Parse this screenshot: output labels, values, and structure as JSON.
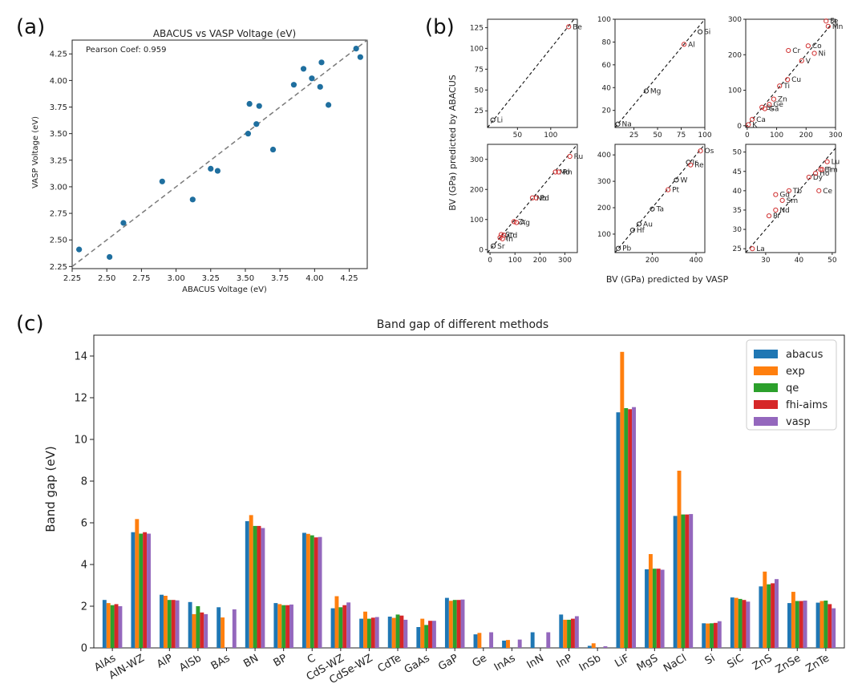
{
  "panel_labels": [
    "(a)",
    "(b)",
    "(c)"
  ],
  "colors": {
    "scatter": "#1f6f9f",
    "parity": "#7a7a7a",
    "bv_marker": "#d03030",
    "abacus": "#1f77b4",
    "exp": "#ff7f0e",
    "qe": "#2ca02c",
    "fhi_aims": "#d62728",
    "vasp": "#9467bd"
  },
  "chart_data": [
    {
      "id": "a",
      "type": "scatter",
      "title": "ABACUS vs VASP Voltage (eV)",
      "xlabel": "ABACUS Voltage (eV)",
      "ylabel": "VASP Voltage (eV)",
      "xlim": [
        2.25,
        4.38
      ],
      "ylim": [
        2.23,
        4.38
      ],
      "xticks": [
        "2.25",
        "2.50",
        "2.75",
        "3.00",
        "3.25",
        "3.50",
        "3.75",
        "4.00",
        "4.25"
      ],
      "yticks": [
        "2.25",
        "2.50",
        "2.75",
        "3.00",
        "3.25",
        "3.50",
        "3.75",
        "4.00",
        "4.25"
      ],
      "annotation": "Pearson Coef: 0.959",
      "parity_line": true,
      "points": [
        [
          2.3,
          2.41
        ],
        [
          2.52,
          2.34
        ],
        [
          2.62,
          2.66
        ],
        [
          2.9,
          3.05
        ],
        [
          3.12,
          2.88
        ],
        [
          3.25,
          3.17
        ],
        [
          3.3,
          3.15
        ],
        [
          3.52,
          3.5
        ],
        [
          3.53,
          3.78
        ],
        [
          3.58,
          3.59
        ],
        [
          3.6,
          3.76
        ],
        [
          3.7,
          3.35
        ],
        [
          3.85,
          3.96
        ],
        [
          3.92,
          4.11
        ],
        [
          3.98,
          4.02
        ],
        [
          4.04,
          3.94
        ],
        [
          4.05,
          4.17
        ],
        [
          4.1,
          3.77
        ],
        [
          4.3,
          4.3
        ],
        [
          4.33,
          4.22
        ]
      ]
    },
    {
      "id": "b",
      "type": "scatter",
      "title": "",
      "xlabel": "BV (GPa) predicted by VASP",
      "ylabel": "BV (GPa) predicted by ABACUS",
      "parity_line": true,
      "subplots": [
        {
          "xlim": [
            5,
            140
          ],
          "ylim": [
            5,
            135
          ],
          "xticks": [
            50,
            100
          ],
          "yticks": [
            25,
            50,
            75,
            100,
            125
          ],
          "points": [
            {
              "label": "Li",
              "x": 13,
              "y": 14,
              "color": "black"
            },
            {
              "label": "Be",
              "x": 127,
              "y": 126,
              "color": "red"
            }
          ]
        },
        {
          "xlim": [
            5,
            100
          ],
          "ylim": [
            5,
            100
          ],
          "xticks": [
            25,
            50,
            75,
            100
          ],
          "yticks": [
            20,
            40,
            60,
            80,
            100
          ],
          "points": [
            {
              "label": "Na",
              "x": 8,
              "y": 8,
              "color": "black"
            },
            {
              "label": "Mg",
              "x": 38,
              "y": 37,
              "color": "black"
            },
            {
              "label": "Al",
              "x": 78,
              "y": 78,
              "color": "red"
            },
            {
              "label": "Si",
              "x": 95,
              "y": 89,
              "color": "black"
            }
          ]
        },
        {
          "xlim": [
            -5,
            300
          ],
          "ylim": [
            -5,
            300
          ],
          "xticks": [
            0,
            100,
            200,
            300
          ],
          "yticks": [
            0,
            100,
            200,
            300
          ],
          "points": [
            {
              "label": "K",
              "x": 4,
              "y": 3,
              "color": "red"
            },
            {
              "label": "Ca",
              "x": 17,
              "y": 18,
              "color": "red"
            },
            {
              "label": "Sc",
              "x": 50,
              "y": 52,
              "color": "red"
            },
            {
              "label": "Ga",
              "x": 60,
              "y": 48,
              "color": "red"
            },
            {
              "label": "Ge",
              "x": 75,
              "y": 60,
              "color": "red"
            },
            {
              "label": "Zn",
              "x": 90,
              "y": 75,
              "color": "red"
            },
            {
              "label": "Ti",
              "x": 110,
              "y": 112,
              "color": "red"
            },
            {
              "label": "Cu",
              "x": 137,
              "y": 130,
              "color": "red"
            },
            {
              "label": "Cr",
              "x": 140,
              "y": 212,
              "color": "red"
            },
            {
              "label": "V",
              "x": 185,
              "y": 183,
              "color": "red"
            },
            {
              "label": "Co",
              "x": 207,
              "y": 225,
              "color": "red"
            },
            {
              "label": "Ni",
              "x": 228,
              "y": 204,
              "color": "red"
            },
            {
              "label": "Mn",
              "x": 275,
              "y": 280,
              "color": "red"
            },
            {
              "label": "Fe",
              "x": 268,
              "y": 295,
              "color": "red"
            }
          ]
        },
        {
          "xlim": [
            -10,
            350
          ],
          "ylim": [
            -10,
            350
          ],
          "xticks": [
            0,
            100,
            200,
            300
          ],
          "yticks": [
            0,
            100,
            200,
            300
          ],
          "points": [
            {
              "label": "Sr",
              "x": 13,
              "y": 12,
              "color": "black"
            },
            {
              "label": "Y",
              "x": 40,
              "y": 40,
              "color": "red"
            },
            {
              "label": "Sn",
              "x": 45,
              "y": 50,
              "color": "red"
            },
            {
              "label": "In",
              "x": 50,
              "y": 36,
              "color": "red"
            },
            {
              "label": "Cd",
              "x": 55,
              "y": 48,
              "color": "red"
            },
            {
              "label": "Zr",
              "x": 96,
              "y": 93,
              "color": "red"
            },
            {
              "label": "Ag",
              "x": 106,
              "y": 90,
              "color": "red"
            },
            {
              "label": "Nb",
              "x": 170,
              "y": 172,
              "color": "red"
            },
            {
              "label": "Pd",
              "x": 185,
              "y": 172,
              "color": "red"
            },
            {
              "label": "Mo",
              "x": 262,
              "y": 258,
              "color": "red"
            },
            {
              "label": "Rh",
              "x": 275,
              "y": 258,
              "color": "red"
            },
            {
              "label": "Ru",
              "x": 320,
              "y": 310,
              "color": "red"
            }
          ]
        },
        {
          "xlim": [
            30,
            440
          ],
          "ylim": [
            30,
            440
          ],
          "xticks": [
            200,
            400
          ],
          "yticks": [
            100,
            200,
            300,
            400
          ],
          "points": [
            {
              "label": "Pb",
              "x": 45,
              "y": 46,
              "color": "black"
            },
            {
              "label": "Hf",
              "x": 110,
              "y": 115,
              "color": "black"
            },
            {
              "label": "Au",
              "x": 140,
              "y": 138,
              "color": "black"
            },
            {
              "label": "Ta",
              "x": 200,
              "y": 195,
              "color": "black"
            },
            {
              "label": "Pt",
              "x": 272,
              "y": 268,
              "color": "red"
            },
            {
              "label": "W",
              "x": 310,
              "y": 305,
              "color": "black"
            },
            {
              "label": "Ir",
              "x": 365,
              "y": 372,
              "color": "black"
            },
            {
              "label": "Re",
              "x": 375,
              "y": 362,
              "color": "red"
            },
            {
              "label": "Os",
              "x": 420,
              "y": 415,
              "color": "red"
            }
          ]
        },
        {
          "xlim": [
            24,
            51
          ],
          "ylim": [
            24,
            52
          ],
          "xticks": [
            30,
            40,
            50
          ],
          "yticks": [
            25,
            30,
            35,
            40,
            45,
            50
          ],
          "points": [
            {
              "label": "La",
              "x": 26,
              "y": 25,
              "color": "red"
            },
            {
              "label": "Pr",
              "x": 31,
              "y": 33.5,
              "color": "red"
            },
            {
              "label": "Nd",
              "x": 33,
              "y": 35,
              "color": "red"
            },
            {
              "label": "Sm",
              "x": 35,
              "y": 37.5,
              "color": "red"
            },
            {
              "label": "Gd",
              "x": 33,
              "y": 39,
              "color": "red"
            },
            {
              "label": "Tb",
              "x": 37,
              "y": 40,
              "color": "red"
            },
            {
              "label": "Dy",
              "x": 43,
              "y": 43.5,
              "color": "red"
            },
            {
              "label": "Ce",
              "x": 46,
              "y": 40,
              "color": "red"
            },
            {
              "label": "Ho",
              "x": 45,
              "y": 44.5,
              "color": "red"
            },
            {
              "label": "Er",
              "x": 46.5,
              "y": 45.5,
              "color": "red"
            },
            {
              "label": "Tm",
              "x": 47,
              "y": 45.5,
              "color": "red"
            },
            {
              "label": "Lu",
              "x": 48.5,
              "y": 47.5,
              "color": "red"
            }
          ]
        }
      ]
    },
    {
      "id": "c",
      "type": "bar",
      "title": "Band gap of different methods",
      "xlabel": "",
      "ylabel": "Band gap (eV)",
      "ylim": [
        0,
        15
      ],
      "yticks": [
        0,
        2,
        4,
        6,
        8,
        10,
        12,
        14
      ],
      "legend_position": "top-right",
      "categories": [
        "AlAs",
        "AlN-WZ",
        "AlP",
        "AlSb",
        "BAs",
        "BN",
        "BP",
        "C",
        "CdS-WZ",
        "CdSe-WZ",
        "CdTe",
        "GaAs",
        "GaP",
        "Ge",
        "InAs",
        "InN",
        "InP",
        "InSb",
        "LiF",
        "MgS",
        "NaCl",
        "Si",
        "SiC",
        "ZnS",
        "ZnSe",
        "ZnTe"
      ],
      "series": [
        {
          "name": "abacus",
          "values": [
            2.3,
            5.55,
            2.55,
            2.2,
            1.95,
            6.08,
            2.15,
            5.52,
            1.9,
            1.4,
            1.5,
            1.0,
            2.4,
            0.65,
            0.35,
            0.75,
            1.6,
            0.1,
            11.3,
            3.77,
            6.33,
            1.18,
            2.42,
            2.95,
            2.15,
            2.17
          ]
        },
        {
          "name": "exp",
          "values": [
            2.15,
            6.18,
            2.5,
            1.62,
            1.46,
            6.37,
            2.1,
            5.47,
            2.48,
            1.74,
            1.44,
            1.4,
            2.26,
            0.72,
            0.38,
            0.0,
            1.35,
            0.22,
            14.2,
            4.5,
            8.5,
            1.17,
            2.4,
            3.66,
            2.69,
            2.25
          ]
        },
        {
          "name": "qe",
          "values": [
            2.05,
            5.48,
            2.3,
            2.0,
            0.0,
            5.85,
            2.05,
            5.4,
            1.95,
            1.4,
            1.6,
            1.1,
            2.3,
            0.0,
            0.0,
            0.0,
            1.35,
            0.0,
            11.5,
            3.8,
            6.4,
            1.18,
            2.35,
            3.05,
            2.25,
            2.27
          ]
        },
        {
          "name": "fhi-aims",
          "values": [
            2.1,
            5.55,
            2.3,
            1.7,
            0.0,
            5.85,
            2.05,
            5.3,
            2.05,
            1.45,
            1.55,
            1.3,
            2.3,
            0.0,
            0.0,
            0.0,
            1.4,
            0.0,
            11.45,
            3.8,
            6.4,
            1.2,
            2.3,
            3.1,
            2.25,
            2.1
          ]
        },
        {
          "name": "vasp",
          "values": [
            2.0,
            5.48,
            2.28,
            1.62,
            1.85,
            5.75,
            2.08,
            5.32,
            2.18,
            1.48,
            1.35,
            1.3,
            2.32,
            0.75,
            0.4,
            0.75,
            1.52,
            0.08,
            11.55,
            3.75,
            6.42,
            1.28,
            2.22,
            3.3,
            2.27,
            1.9
          ]
        }
      ]
    }
  ]
}
